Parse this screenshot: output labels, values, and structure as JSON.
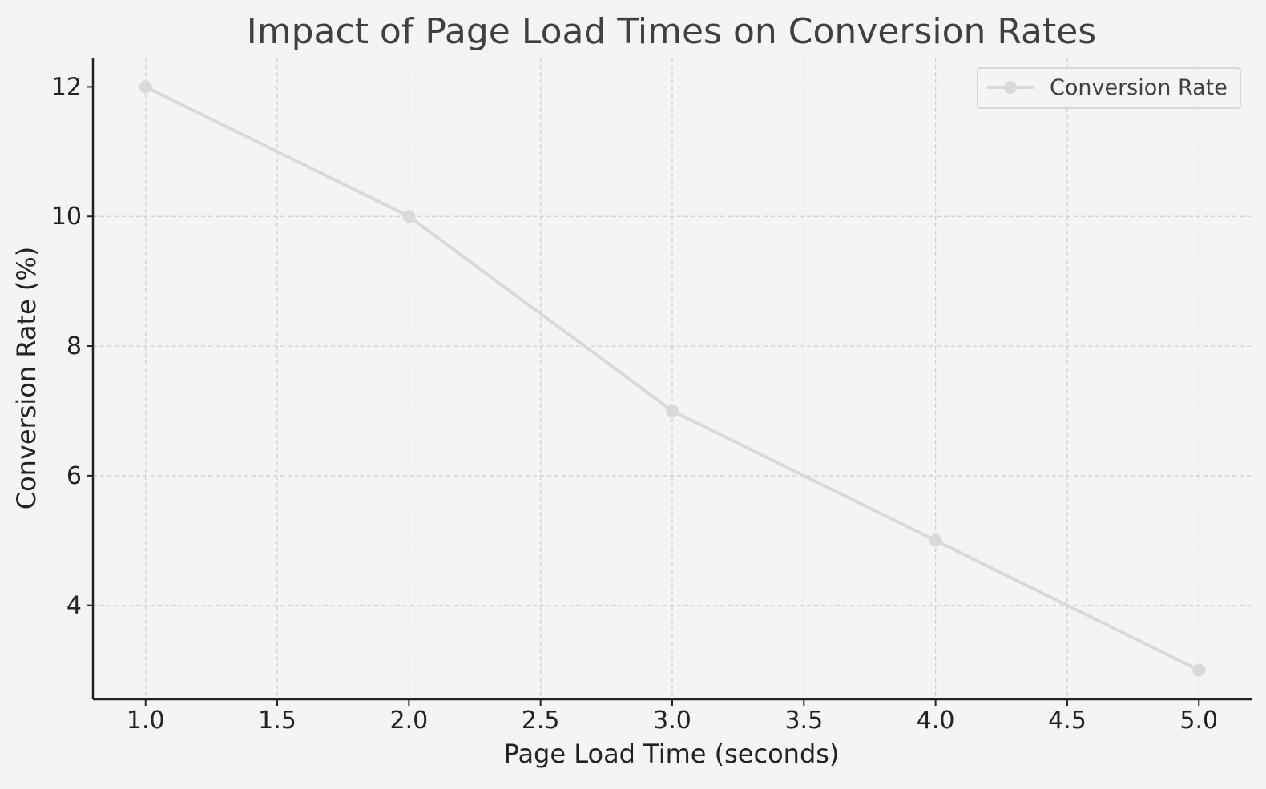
{
  "chart_data": {
    "type": "line",
    "title": "Impact of Page Load Times on Conversion Rates",
    "xlabel": "Page Load Time (seconds)",
    "ylabel": "Conversion Rate (%)",
    "xlim": [
      0.8,
      5.2
    ],
    "ylim": [
      2.55,
      12.45
    ],
    "x_ticks": [
      "1.0",
      "1.5",
      "2.0",
      "2.5",
      "3.0",
      "3.5",
      "4.0",
      "4.5",
      "5.0"
    ],
    "y_ticks": [
      "4",
      "6",
      "8",
      "10",
      "12"
    ],
    "grid": true,
    "legend_position": "top-right",
    "series": [
      {
        "name": "Conversion Rate",
        "color": "#d9d9d9",
        "marker": "circle",
        "x": [
          1,
          2,
          3,
          4,
          5
        ],
        "y": [
          12,
          10,
          7,
          5,
          3
        ]
      }
    ]
  },
  "colors": {
    "background": "#f4f4f4",
    "grid": "#cccccc",
    "axis": "#222222",
    "title": "#404040"
  }
}
